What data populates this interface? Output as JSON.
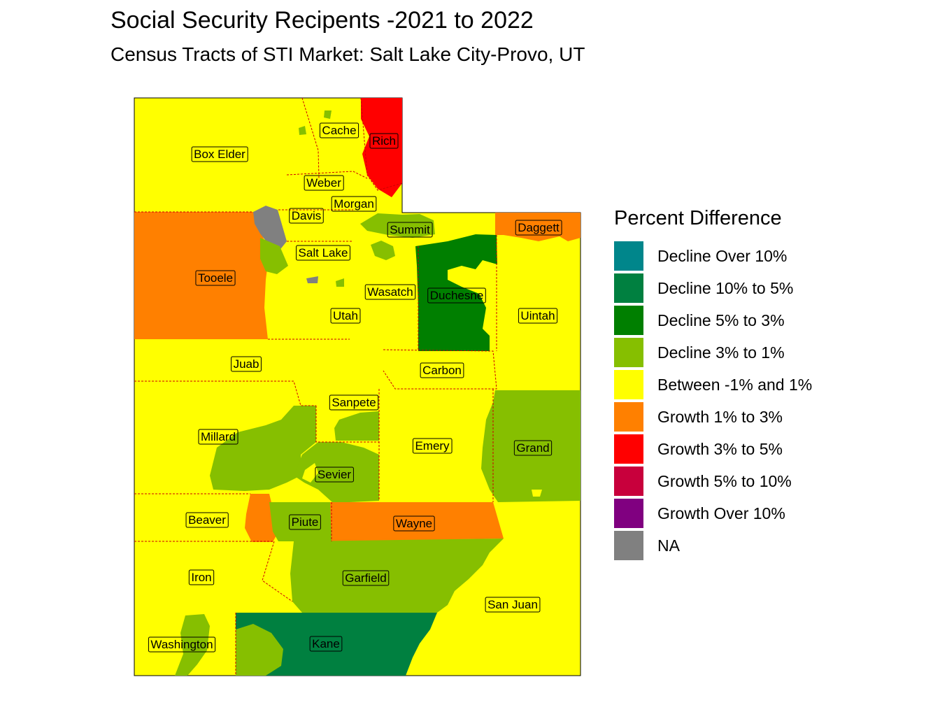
{
  "title": "Social Security Recipents -2021 to 2022",
  "subtitle": "Census Tracts of STI Market: Salt Lake City-Provo, UT",
  "legend": {
    "title": "Percent Difference",
    "items": [
      {
        "label": "Decline Over 10%",
        "color": "#00868B"
      },
      {
        "label": "Decline 10% to 5%",
        "color": "#008040"
      },
      {
        "label": "Decline 5% to 3%",
        "color": "#007F00"
      },
      {
        "label": "Decline 3% to 1%",
        "color": "#86BF00"
      },
      {
        "label": "Between -1% and 1%",
        "color": "#FFFF00"
      },
      {
        "label": "Growth 1% to 3%",
        "color": "#FF8000"
      },
      {
        "label": "Growth 3% to 5%",
        "color": "#FF0000"
      },
      {
        "label": "Growth 5% to 10%",
        "color": "#C8003C"
      },
      {
        "label": "Growth Over 10%",
        "color": "#800080"
      },
      {
        "label": "NA",
        "color": "#808080"
      }
    ]
  },
  "counties": [
    {
      "name": "Box Elder",
      "category": "Between -1% and 1%"
    },
    {
      "name": "Cache",
      "category": "Between -1% and 1%"
    },
    {
      "name": "Rich",
      "category": "Growth 3% to 5%"
    },
    {
      "name": "Weber",
      "category": "Between -1% and 1%"
    },
    {
      "name": "Morgan",
      "category": "Between -1% and 1%"
    },
    {
      "name": "Davis",
      "category": "Between -1% and 1%"
    },
    {
      "name": "Summit",
      "category": "Decline 3% to 1%"
    },
    {
      "name": "Daggett",
      "category": "Growth 1% to 3%"
    },
    {
      "name": "Salt Lake",
      "category": "Between -1% and 1%"
    },
    {
      "name": "Tooele",
      "category": "Growth 1% to 3%"
    },
    {
      "name": "Wasatch",
      "category": "Between -1% and 1%"
    },
    {
      "name": "Duchesne",
      "category": "Decline 5% to 3%"
    },
    {
      "name": "Uintah",
      "category": "Between -1% and 1%"
    },
    {
      "name": "Utah",
      "category": "Between -1% and 1%"
    },
    {
      "name": "Juab",
      "category": "Between -1% and 1%"
    },
    {
      "name": "Carbon",
      "category": "Between -1% and 1%"
    },
    {
      "name": "Sanpete",
      "category": "Between -1% and 1%"
    },
    {
      "name": "Millard",
      "category": "Decline 3% to 1%"
    },
    {
      "name": "Emery",
      "category": "Between -1% and 1%"
    },
    {
      "name": "Grand",
      "category": "Decline 3% to 1%"
    },
    {
      "name": "Sevier",
      "category": "Decline 3% to 1%"
    },
    {
      "name": "Beaver",
      "category": "Between -1% and 1%"
    },
    {
      "name": "Piute",
      "category": "Decline 3% to 1%"
    },
    {
      "name": "Wayne",
      "category": "Growth 1% to 3%"
    },
    {
      "name": "Iron",
      "category": "Between -1% and 1%"
    },
    {
      "name": "Garfield",
      "category": "Decline 3% to 1%"
    },
    {
      "name": "San Juan",
      "category": "Between -1% and 1%"
    },
    {
      "name": "Washington",
      "category": "Between -1% and 1%"
    },
    {
      "name": "Kane",
      "category": "Decline 10% to 5%"
    }
  ]
}
